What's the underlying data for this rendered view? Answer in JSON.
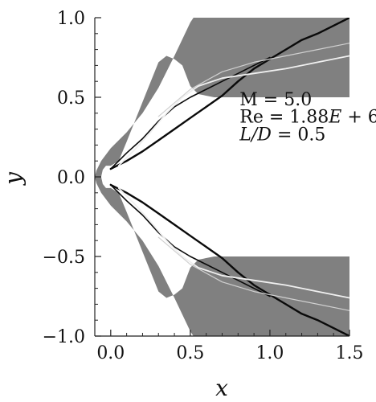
{
  "chart_data": {
    "type": "heatmap",
    "title": "",
    "xlabel": "x",
    "ylabel": "y",
    "xlim": [
      -0.1,
      1.5
    ],
    "ylim": [
      -1.0,
      1.0
    ],
    "x_ticks": [
      0.0,
      0.5,
      1.0,
      1.5
    ],
    "y_ticks": [
      -1.0,
      -0.5,
      0.0,
      0.5,
      1.0
    ],
    "x_tick_labels": [
      "0.0",
      "0.5",
      "1.0",
      "1.5"
    ],
    "y_tick_labels": [
      "−1.0",
      "−0.5",
      "0.0",
      "0.5",
      "1.0"
    ],
    "grid": false,
    "field_color": "#808080",
    "annotations": {
      "mach": {
        "text": "M = 5.0",
        "x": 0.81,
        "y": 0.45
      },
      "reynolds": {
        "prefix": "Re = 1.88",
        "italic": "E",
        "suffix": " + 6",
        "x": 0.81,
        "y": 0.34
      },
      "length_ratio": {
        "italic": "L/D",
        "suffix": " = 0.5",
        "x": 0.81,
        "y": 0.23
      }
    },
    "domain": {
      "outer_boundary": [
        [
          -0.1,
          0.0
        ],
        [
          -0.09,
          0.04
        ],
        [
          -0.06,
          0.1
        ],
        [
          0.0,
          0.18
        ],
        [
          0.1,
          0.28
        ],
        [
          0.2,
          0.4
        ],
        [
          0.3,
          0.56
        ],
        [
          0.4,
          0.76
        ],
        [
          0.5,
          0.97
        ],
        [
          0.52,
          1.0
        ],
        [
          1.5,
          1.0
        ]
      ],
      "body_contour": [
        [
          1.5,
          0.5
        ],
        [
          0.65,
          0.5
        ],
        [
          0.55,
          0.52
        ],
        [
          0.5,
          0.57
        ],
        [
          0.45,
          0.7
        ],
        [
          0.4,
          0.74
        ],
        [
          0.35,
          0.76
        ],
        [
          0.3,
          0.72
        ],
        [
          0.2,
          0.47
        ],
        [
          0.1,
          0.22
        ],
        [
          0.05,
          0.1
        ],
        [
          0.0,
          0.07
        ],
        [
          -0.03,
          0.07
        ],
        [
          -0.05,
          0.045
        ],
        [
          -0.06,
          0.0
        ]
      ]
    },
    "features": [
      {
        "name": "bow-shock",
        "color": "#0a0a0a",
        "width": 2.4,
        "points": [
          [
            0.0,
            0.05
          ],
          [
            0.1,
            0.1
          ],
          [
            0.2,
            0.16
          ],
          [
            0.3,
            0.23
          ],
          [
            0.4,
            0.3
          ],
          [
            0.5,
            0.37
          ],
          [
            0.6,
            0.44
          ],
          [
            0.7,
            0.51
          ],
          [
            0.8,
            0.6
          ],
          [
            0.9,
            0.68
          ],
          [
            1.0,
            0.74
          ],
          [
            1.1,
            0.8
          ],
          [
            1.2,
            0.86
          ],
          [
            1.3,
            0.9
          ],
          [
            1.4,
            0.95
          ],
          [
            1.5,
            1.0
          ]
        ]
      },
      {
        "name": "separation-shock",
        "color": "#0a0a0a",
        "width": 1.6,
        "points": [
          [
            0.0,
            0.05
          ],
          [
            0.1,
            0.15
          ],
          [
            0.2,
            0.24
          ],
          [
            0.3,
            0.35
          ],
          [
            0.4,
            0.44
          ],
          [
            0.5,
            0.5
          ],
          [
            0.6,
            0.55
          ],
          [
            0.7,
            0.6
          ],
          [
            0.8,
            0.65
          ],
          [
            0.9,
            0.7
          ],
          [
            1.0,
            0.75
          ]
        ]
      },
      {
        "name": "shear-layer",
        "color": "#f0f0f0",
        "width": 1.8,
        "points": [
          [
            0.05,
            0.07
          ],
          [
            0.15,
            0.17
          ],
          [
            0.25,
            0.28
          ],
          [
            0.35,
            0.4
          ],
          [
            0.45,
            0.5
          ],
          [
            0.55,
            0.57
          ],
          [
            0.7,
            0.62
          ],
          [
            0.9,
            0.65
          ],
          [
            1.1,
            0.68
          ],
          [
            1.3,
            0.72
          ],
          [
            1.5,
            0.76
          ]
        ]
      },
      {
        "name": "wake-layer",
        "color": "#d0d0d0",
        "width": 1.2,
        "points": [
          [
            0.3,
            0.38
          ],
          [
            0.5,
            0.55
          ],
          [
            0.7,
            0.66
          ],
          [
            0.9,
            0.72
          ],
          [
            1.1,
            0.76
          ],
          [
            1.3,
            0.8
          ],
          [
            1.5,
            0.84
          ]
        ]
      }
    ]
  }
}
